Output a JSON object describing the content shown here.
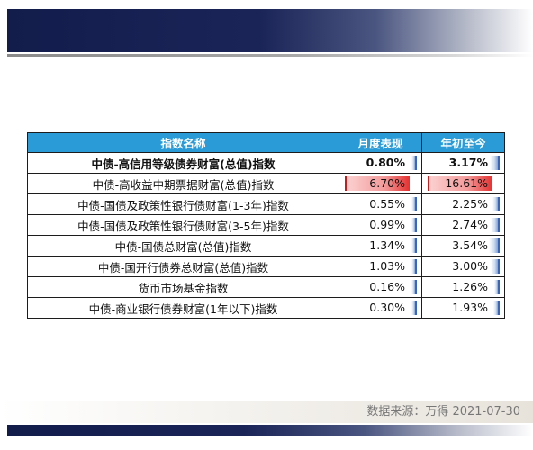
{
  "header": {
    "columns": [
      "指数名称",
      "月度表现",
      "年初至今"
    ]
  },
  "rows": [
    {
      "name": "中债-高信用等级债券财富(总值)指数",
      "monthly": "0.80%",
      "ytd": "3.17%",
      "monthly_value": 0.8,
      "ytd_value": 3.17,
      "bold": true
    },
    {
      "name": "中债-高收益中期票据财富(总值)指数",
      "monthly": "-6.70%",
      "ytd": "-16.61%",
      "monthly_value": -6.7,
      "ytd_value": -16.61,
      "bold": false
    },
    {
      "name": "中债-国债及政策性银行债财富(1-3年)指数",
      "monthly": "0.55%",
      "ytd": "2.25%",
      "monthly_value": 0.55,
      "ytd_value": 2.25,
      "bold": false
    },
    {
      "name": "中债-国债及政策性银行债财富(3-5年)指数",
      "monthly": "0.99%",
      "ytd": "2.74%",
      "monthly_value": 0.99,
      "ytd_value": 2.74,
      "bold": false
    },
    {
      "name": "中债-国债总财富(总值)指数",
      "monthly": "1.34%",
      "ytd": "3.54%",
      "monthly_value": 1.34,
      "ytd_value": 3.54,
      "bold": false
    },
    {
      "name": "中债-国开行债券总财富(总值)指数",
      "monthly": "1.03%",
      "ytd": "3.00%",
      "monthly_value": 1.03,
      "ytd_value": 3.0,
      "bold": false
    },
    {
      "name": "货币市场基金指数",
      "monthly": "0.16%",
      "ytd": "1.26%",
      "monthly_value": 0.16,
      "ytd_value": 1.26,
      "bold": false
    },
    {
      "name": "中债-商业银行债券财富(1年以下)指数",
      "monthly": "0.30%",
      "ytd": "1.93%",
      "monthly_value": 0.3,
      "ytd_value": 1.93,
      "bold": false
    }
  ],
  "source_note": "数据来源：万得 2021-07-30",
  "colors": {
    "header_bg": "#2a9bd6",
    "banner_navy": "#1a2457",
    "bar_positive": "#7fa3d8",
    "bar_negative": "#e53030"
  }
}
